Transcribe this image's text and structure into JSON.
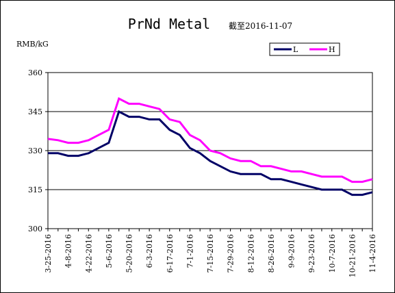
{
  "chart_data": {
    "type": "line",
    "title": "PrNd Metal",
    "subtitle": "截至2016-11-07",
    "y_label": "RMB/kG",
    "categories": [
      "3-25-2016",
      null,
      "4-8-2016",
      null,
      "4-22-2016",
      null,
      "5-6-2016",
      null,
      "5-20-2016",
      null,
      "6-3-2016",
      null,
      "6-17-2016",
      null,
      "7-1-2016",
      null,
      "7-15-2016",
      null,
      "7-29-2016",
      null,
      "8-12-2016",
      null,
      "8-26-2016",
      null,
      "9-9-2016",
      null,
      "9-23-2016",
      null,
      "10-7-2016",
      null,
      "10-21-2016",
      null,
      "11-4-2016"
    ],
    "series": [
      {
        "name": "L",
        "color": "#000066",
        "values": [
          329,
          329,
          328,
          328,
          329,
          331,
          333,
          345,
          343,
          343,
          342,
          342,
          338,
          336,
          331,
          329,
          326,
          324,
          322,
          321,
          321,
          321,
          319,
          319,
          318,
          317,
          316,
          315,
          315,
          315,
          313,
          313,
          314
        ]
      },
      {
        "name": "H",
        "color": "#ff00ff",
        "values": [
          334.5,
          334,
          333,
          333,
          334,
          336,
          338,
          350,
          348,
          348,
          347,
          346,
          342,
          341,
          336,
          334,
          330,
          329,
          327,
          326,
          326,
          324,
          324,
          323,
          322,
          322,
          321,
          320,
          320,
          320,
          318,
          318,
          319
        ]
      }
    ],
    "ylim": [
      300,
      360
    ],
    "yticks": [
      300,
      315,
      330,
      345,
      360
    ],
    "grid": true,
    "legend": "top-right"
  }
}
